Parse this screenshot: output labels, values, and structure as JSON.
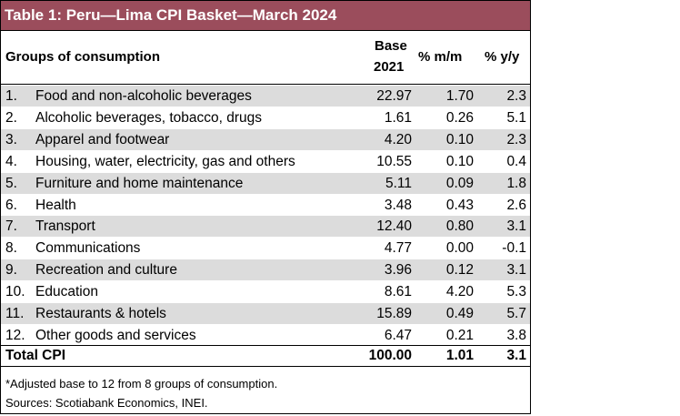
{
  "title": "Table 1: Peru—Lima CPI Basket—March 2024",
  "header": {
    "groups": "Groups of consumption",
    "base_line1": "Base",
    "base_line2": "2021",
    "mm": "% m/m",
    "yy": "% y/y"
  },
  "rows": [
    {
      "num": "1.",
      "label": "Food and non-alcoholic beverages",
      "base": "22.97",
      "mm": "1.70",
      "yy": "2.3"
    },
    {
      "num": "2.",
      "label": "Alcoholic beverages, tobacco, drugs",
      "base": "1.61",
      "mm": "0.26",
      "yy": "5.1"
    },
    {
      "num": "3.",
      "label": "Apparel and footwear",
      "base": "4.20",
      "mm": "0.10",
      "yy": "2.3"
    },
    {
      "num": "4.",
      "label": "Housing, water, electricity, gas and others",
      "base": "10.55",
      "mm": "0.10",
      "yy": "0.4"
    },
    {
      "num": "5.",
      "label": "Furniture and home maintenance",
      "base": "5.11",
      "mm": "0.09",
      "yy": "1.8"
    },
    {
      "num": "6.",
      "label": "Health",
      "base": "3.48",
      "mm": "0.43",
      "yy": "2.6"
    },
    {
      "num": "7.",
      "label": "Transport",
      "base": "12.40",
      "mm": "0.80",
      "yy": "3.1"
    },
    {
      "num": "8.",
      "label": "Communications",
      "base": "4.77",
      "mm": "0.00",
      "yy": "-0.1"
    },
    {
      "num": "9.",
      "label": "Recreation and culture",
      "base": "3.96",
      "mm": "0.12",
      "yy": "3.1"
    },
    {
      "num": "10.",
      "label": "Education",
      "base": "8.61",
      "mm": "4.20",
      "yy": "5.3"
    },
    {
      "num": "11.",
      "label": "Restaurants & hotels",
      "base": "15.89",
      "mm": "0.49",
      "yy": "5.7"
    },
    {
      "num": "12.",
      "label": "Other goods and services",
      "base": "6.47",
      "mm": "0.21",
      "yy": "3.8"
    }
  ],
  "total": {
    "label": "Total CPI",
    "base": "100.00",
    "mm": "1.01",
    "yy": "3.1"
  },
  "notes": [
    "*Adjusted base to 12 from 8 groups of consumption.",
    "Sources: Scotiabank Economics, INEI."
  ],
  "colors": {
    "title_bg": "#9b4d5c",
    "shade": "#dcdcdc"
  }
}
